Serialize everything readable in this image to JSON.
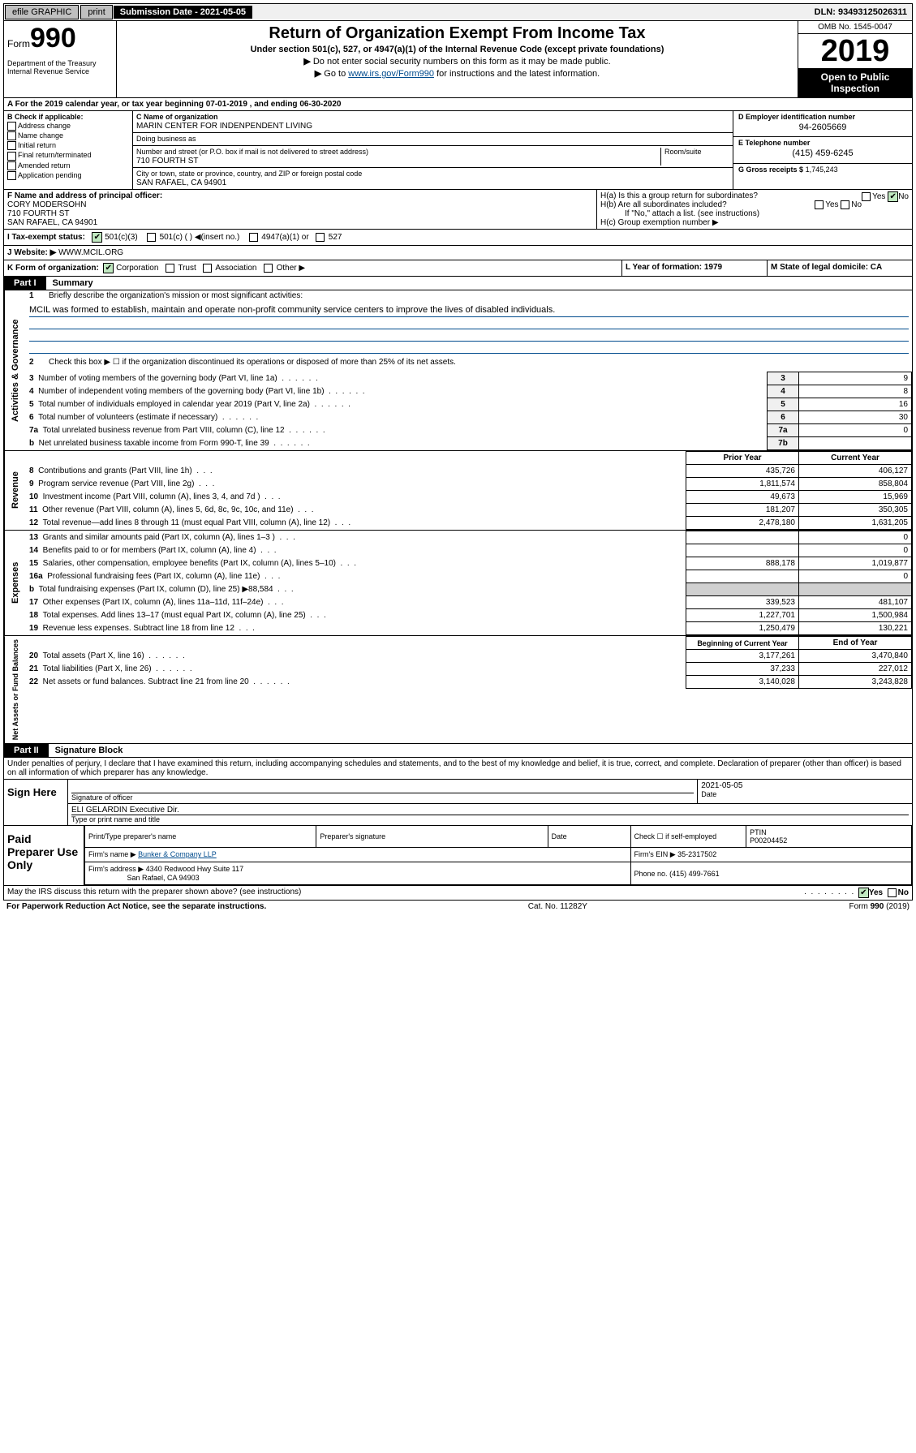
{
  "topbar": {
    "efile": "efile GRAPHIC",
    "print": "print",
    "submission": "Submission Date - 2021-05-05",
    "dln": "DLN: 93493125026311"
  },
  "header": {
    "form_word": "Form",
    "form_num": "990",
    "dept": "Department of the Treasury\nInternal Revenue Service",
    "title": "Return of Organization Exempt From Income Tax",
    "subtitle": "Under section 501(c), 527, or 4947(a)(1) of the Internal Revenue Code (except private foundations)",
    "instr1": "Do not enter social security numbers on this form as it may be made public.",
    "instr2_pre": "Go to ",
    "instr2_link": "www.irs.gov/Form990",
    "instr2_post": " for instructions and the latest information.",
    "omb": "OMB No. 1545-0047",
    "year": "2019",
    "open": "Open to Public Inspection"
  },
  "rowA": "A For the 2019 calendar year, or tax year beginning 07-01-2019    , and ending 06-30-2020",
  "boxB": {
    "label": "B Check if applicable:",
    "items": [
      "Address change",
      "Name change",
      "Initial return",
      "Final return/terminated",
      "Amended return",
      "Application pending"
    ]
  },
  "boxC": {
    "name_lbl": "C Name of organization",
    "name": "MARIN CENTER FOR INDENPENDENT LIVING",
    "dba_lbl": "Doing business as",
    "dba": "",
    "street_lbl": "Number and street (or P.O. box if mail is not delivered to street address)",
    "room_lbl": "Room/suite",
    "street": "710 FOURTH ST",
    "city_lbl": "City or town, state or province, country, and ZIP or foreign postal code",
    "city": "SAN RAFAEL, CA  94901"
  },
  "boxD": {
    "lbl": "D Employer identification number",
    "val": "94-2605669"
  },
  "boxE": {
    "lbl": "E Telephone number",
    "val": "(415) 459-6245"
  },
  "boxG": {
    "lbl": "G Gross receipts $",
    "val": "1,745,243"
  },
  "boxF": {
    "lbl": "F  Name and address of principal officer:",
    "name": "CORY MODERSOHN",
    "street": "710 FOURTH ST",
    "city": "SAN RAFAEL, CA  94901"
  },
  "boxH": {
    "a": "H(a)  Is this a group return for subordinates?",
    "b": "H(b)  Are all subordinates included?",
    "b_note": "If \"No,\" attach a list. (see instructions)",
    "c": "H(c)  Group exemption number ▶",
    "yes": "Yes",
    "no": "No"
  },
  "boxI": {
    "lbl": "I  Tax-exempt status:",
    "opts": [
      "501(c)(3)",
      "501(c) (   ) ◀(insert no.)",
      "4947(a)(1) or",
      "527"
    ]
  },
  "boxJ": {
    "lbl": "J  Website: ▶",
    "val": "  WWW.MCIL.ORG"
  },
  "boxK": {
    "lbl": "K Form of organization:",
    "opts": [
      "Corporation",
      "Trust",
      "Association",
      "Other ▶"
    ],
    "L": "L Year of formation: 1979",
    "M": "M State of legal domicile: CA"
  },
  "part1": {
    "tag": "Part I",
    "title": "Summary"
  },
  "summary": {
    "l1_lbl": "Briefly describe the organization's mission or most significant activities:",
    "l1_val": "MCIL was formed to establish, maintain and operate non-profit community service centers to improve the lives of disabled individuals.",
    "l2": "Check this box ▶ ☐  if the organization discontinued its operations or disposed of more than 25% of its net assets.",
    "lines": [
      {
        "n": "3",
        "t": "Number of voting members of the governing body (Part VI, line 1a)",
        "box": "3",
        "v": "9"
      },
      {
        "n": "4",
        "t": "Number of independent voting members of the governing body (Part VI, line 1b)",
        "box": "4",
        "v": "8"
      },
      {
        "n": "5",
        "t": "Total number of individuals employed in calendar year 2019 (Part V, line 2a)",
        "box": "5",
        "v": "16"
      },
      {
        "n": "6",
        "t": "Total number of volunteers (estimate if necessary)",
        "box": "6",
        "v": "30"
      },
      {
        "n": "7a",
        "t": "Total unrelated business revenue from Part VIII, column (C), line 12",
        "box": "7a",
        "v": "0"
      },
      {
        "n": "b",
        "t": "Net unrelated business taxable income from Form 990-T, line 39",
        "box": "7b",
        "v": ""
      }
    ]
  },
  "sections": {
    "gov": "Activities & Governance",
    "rev": "Revenue",
    "exp": "Expenses",
    "net": "Net Assets or Fund Balances"
  },
  "revHeader": {
    "prior": "Prior Year",
    "current": "Current Year"
  },
  "revenue": [
    {
      "n": "8",
      "t": "Contributions and grants (Part VIII, line 1h)",
      "p": "435,726",
      "c": "406,127"
    },
    {
      "n": "9",
      "t": "Program service revenue (Part VIII, line 2g)",
      "p": "1,811,574",
      "c": "858,804"
    },
    {
      "n": "10",
      "t": "Investment income (Part VIII, column (A), lines 3, 4, and 7d )",
      "p": "49,673",
      "c": "15,969"
    },
    {
      "n": "11",
      "t": "Other revenue (Part VIII, column (A), lines 5, 6d, 8c, 9c, 10c, and 11e)",
      "p": "181,207",
      "c": "350,305"
    },
    {
      "n": "12",
      "t": "Total revenue—add lines 8 through 11 (must equal Part VIII, column (A), line 12)",
      "p": "2,478,180",
      "c": "1,631,205"
    }
  ],
  "expenses": [
    {
      "n": "13",
      "t": "Grants and similar amounts paid (Part IX, column (A), lines 1–3 )",
      "p": "",
      "c": "0"
    },
    {
      "n": "14",
      "t": "Benefits paid to or for members (Part IX, column (A), line 4)",
      "p": "",
      "c": "0"
    },
    {
      "n": "15",
      "t": "Salaries, other compensation, employee benefits (Part IX, column (A), lines 5–10)",
      "p": "888,178",
      "c": "1,019,877"
    },
    {
      "n": "16a",
      "t": "Professional fundraising fees (Part IX, column (A), line 11e)",
      "p": "",
      "c": "0"
    },
    {
      "n": "b",
      "t": "Total fundraising expenses (Part IX, column (D), line 25) ▶88,584",
      "p": "grey",
      "c": "grey"
    },
    {
      "n": "17",
      "t": "Other expenses (Part IX, column (A), lines 11a–11d, 11f–24e)",
      "p": "339,523",
      "c": "481,107"
    },
    {
      "n": "18",
      "t": "Total expenses. Add lines 13–17 (must equal Part IX, column (A), line 25)",
      "p": "1,227,701",
      "c": "1,500,984"
    },
    {
      "n": "19",
      "t": "Revenue less expenses. Subtract line 18 from line 12",
      "p": "1,250,479",
      "c": "130,221"
    }
  ],
  "netHeader": {
    "begin": "Beginning of Current Year",
    "end": "End of Year"
  },
  "net": [
    {
      "n": "20",
      "t": "Total assets (Part X, line 16)",
      "p": "3,177,261",
      "c": "3,470,840"
    },
    {
      "n": "21",
      "t": "Total liabilities (Part X, line 26)",
      "p": "37,233",
      "c": "227,012"
    },
    {
      "n": "22",
      "t": "Net assets or fund balances. Subtract line 21 from line 20",
      "p": "3,140,028",
      "c": "3,243,828"
    }
  ],
  "part2": {
    "tag": "Part II",
    "title": "Signature Block"
  },
  "declaration": "Under penalties of perjury, I declare that I have examined this return, including accompanying schedules and statements, and to the best of my knowledge and belief, it is true, correct, and complete. Declaration of preparer (other than officer) is based on all information of which preparer has any knowledge.",
  "sign": {
    "here": "Sign Here",
    "sig_lbl": "Signature of officer",
    "date_lbl": "Date",
    "date": "2021-05-05",
    "name": "ELI GELARDIN  Executive Dir.",
    "name_lbl": "Type or print name and title"
  },
  "prep": {
    "title": "Paid Preparer Use Only",
    "h_name": "Print/Type preparer's name",
    "h_sig": "Preparer's signature",
    "h_date": "Date",
    "h_chk": "Check ☐ if self-employed",
    "h_ptin": "PTIN",
    "ptin": "P00204452",
    "firm_lbl": "Firm's name      ▶",
    "firm": "Bunker & Company LLP",
    "ein_lbl": "Firm's EIN ▶",
    "ein": "35-2317502",
    "addr_lbl": "Firm's address ▶",
    "addr": "4340 Redwood Hwy Suite 117",
    "addr2": "San Rafael, CA  94903",
    "phone_lbl": "Phone no.",
    "phone": "(415) 499-7661"
  },
  "footer": {
    "discuss": "May the IRS discuss this return with the preparer shown above? (see instructions)",
    "yes": "Yes",
    "no": "No",
    "paperwork": "For Paperwork Reduction Act Notice, see the separate instructions.",
    "cat": "Cat. No. 11282Y",
    "form": "Form 990 (2019)"
  }
}
